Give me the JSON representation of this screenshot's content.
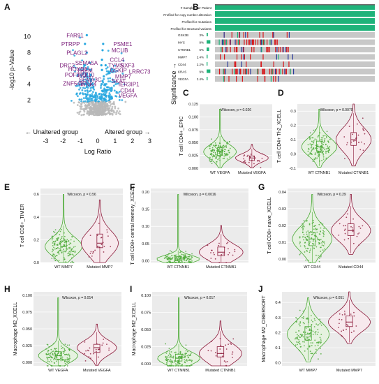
{
  "colors": {
    "gene_label": "#7b1e7a",
    "volcano_cyan": "#29a8e0",
    "volcano_grey": "#b8b8b8",
    "violin_green": "#49a834",
    "violin_maroon": "#8b1a3a",
    "panel_bg": "#ebebeb",
    "oncoprint_green": "#1fb37a",
    "oncoprint_grey": "#c8c8c8",
    "oncoprint_red": "#d7191c",
    "oncoprint_blue": "#2b3a9a"
  },
  "panel_letters": [
    "A",
    "B",
    "C",
    "D",
    "E",
    "F",
    "G",
    "H",
    "I",
    "J"
  ],
  "chart_data": [
    {
      "panel": "A",
      "type": "scatter",
      "xlabel": "Log Ratio",
      "ylabel": "-log10 p-Value",
      "right_label": "Significance →",
      "left_arrow": "← Unaltered group",
      "right_arrow": "Altered group →",
      "xlim": [
        -3.3,
        3.3
      ],
      "ylim": [
        0,
        12
      ],
      "x_ticks": [
        -3,
        -2,
        -1,
        0,
        1,
        2,
        3
      ],
      "y_ticks": [
        2,
        4,
        6,
        8,
        10
      ],
      "genes": [
        {
          "label": "FAR91",
          "x": -1.8,
          "y": 10.2
        },
        {
          "label": "PTRPP",
          "x": -2.1,
          "y": 9.1
        },
        {
          "label": "PLAGL2",
          "x": -1.8,
          "y": 8.0
        },
        {
          "label": "SEMA5A",
          "x": -1.3,
          "y": 6.7
        },
        {
          "label": "DRC2",
          "x": -2.2,
          "y": 6.4
        },
        {
          "label": "HOXD1",
          "x": -1.7,
          "y": 5.9
        },
        {
          "label": "TREM",
          "x": -1.2,
          "y": 5.8
        },
        {
          "label": "POFUT1",
          "x": -1.9,
          "y": 5.2
        },
        {
          "label": "TRX10",
          "x": -1.2,
          "y": 5.2
        },
        {
          "label": "SEMA3C",
          "x": -1.1,
          "y": 4.6
        },
        {
          "label": "ZNF541",
          "x": -2.0,
          "y": 4.1
        },
        {
          "label": "WNK4",
          "x": -1.0,
          "y": 4.0
        },
        {
          "label": "PSME1",
          "x": 0.9,
          "y": 9.1
        },
        {
          "label": "MCUB",
          "x": 0.8,
          "y": 8.3
        },
        {
          "label": "CCL4",
          "x": 0.7,
          "y": 7.1
        },
        {
          "label": "TYMS",
          "x": 0.6,
          "y": 6.4
        },
        {
          "label": "NXF3",
          "x": 1.3,
          "y": 6.4
        },
        {
          "label": "GSKIP",
          "x": 0.7,
          "y": 5.8
        },
        {
          "label": "LRRC73",
          "x": 1.8,
          "y": 5.6
        },
        {
          "label": "MMP7",
          "x": 1.0,
          "y": 5.0
        },
        {
          "label": "SKAT",
          "x": 0.8,
          "y": 4.4
        },
        {
          "label": "IER3IP1",
          "x": 1.2,
          "y": 4.0
        },
        {
          "label": "CD44",
          "x": 1.3,
          "y": 3.2
        },
        {
          "label": "VEGFA",
          "x": 1.2,
          "y": 2.6
        }
      ]
    },
    {
      "panel": "B",
      "type": "heatmap",
      "header_rows": [
        "# Samples per Patient",
        "Profiled for copy number alteration",
        "Profiled for mutations",
        "Profiled for structural variants"
      ],
      "genes": [
        {
          "gene": "GSK3B",
          "pct": "3%"
        },
        {
          "gene": "MYC",
          "pct": "9%"
        },
        {
          "gene": "CTNNB1",
          "pct": "6%"
        },
        {
          "gene": "MMP7",
          "pct": "2.4%"
        },
        {
          "gene": "CD44",
          "pct": "2.2%"
        },
        {
          "gene": "KRAS",
          "pct": "9%"
        },
        {
          "gene": "VEGFA",
          "pct": "2.4%"
        }
      ]
    },
    {
      "panel": "C",
      "type": "violin",
      "annotation": "Wilcoxon, p = 0.026",
      "ylabel": "T cell CD4+_EPIC",
      "ylim": [
        0,
        0.125
      ],
      "y_ticks": [
        0,
        0.025,
        0.05,
        0.075,
        0.1,
        0.125
      ],
      "y_tick_labels": [
        "0.000",
        "0.025",
        "0.050",
        "0.075",
        "0.100",
        "0.125"
      ],
      "groups": [
        "WT VEGFA",
        "Mutated VEGFA"
      ],
      "medians": [
        0.032,
        0.02
      ],
      "q1": [
        0.025,
        0.015
      ],
      "q3": [
        0.04,
        0.024
      ]
    },
    {
      "panel": "D",
      "type": "violin",
      "annotation": "Wilcoxon, p = 0.0079",
      "ylabel": "T cell CD4+ Th2_XCELL",
      "ylim": [
        -0.1,
        0.35
      ],
      "y_ticks": [
        -0.1,
        0,
        0.1,
        0.2,
        0.3
      ],
      "y_tick_labels": [
        "-0.1",
        "0.0",
        "0.1",
        "0.2",
        "0.3"
      ],
      "groups": [
        "WT CTNNB1",
        "Mutated CTNNB1"
      ],
      "medians": [
        0.05,
        0.1
      ],
      "q1": [
        0.02,
        0.06
      ],
      "q3": [
        0.09,
        0.15
      ]
    },
    {
      "panel": "E",
      "type": "violin",
      "annotation": "Wilcoxon, p = 0.56",
      "ylabel": "T cell CD8+_TIMER",
      "ylim": [
        0,
        0.65
      ],
      "y_ticks": [
        0,
        0.2,
        0.4,
        0.6
      ],
      "y_tick_labels": [
        "0.0",
        "0.2",
        "0.4",
        "0.6"
      ],
      "groups": [
        "WT MMP7",
        "Mutated MMP7"
      ],
      "medians": [
        0.14,
        0.17
      ],
      "q1": [
        0.1,
        0.13
      ],
      "q3": [
        0.19,
        0.25
      ]
    },
    {
      "panel": "F",
      "type": "violin",
      "annotation": "Wilcoxon, p = 0.0016",
      "ylabel": "T cell CD8+ central memory_XCELL",
      "ylim": [
        -0.005,
        0.21
      ],
      "y_ticks": [
        0,
        0.05,
        0.1,
        0.15,
        0.2
      ],
      "y_tick_labels": [
        "0.00",
        "0.05",
        "0.10",
        "0.15",
        "0.20"
      ],
      "groups": [
        "WT CTNNB1",
        "Mutated CTNNB1"
      ],
      "medians": [
        0.005,
        0.025
      ],
      "q1": [
        0,
        0.015
      ],
      "q3": [
        0.012,
        0.04
      ]
    },
    {
      "panel": "G",
      "type": "violin",
      "annotation": "Wilcoxon, p = 0.29",
      "ylabel": "T cell CD8+ naive_XCELL",
      "ylim": [
        -0.002,
        0.042
      ],
      "y_ticks": [
        0,
        0.01,
        0.02,
        0.03,
        0.04
      ],
      "y_tick_labels": [
        "0.00",
        "0.01",
        "0.02",
        "0.03",
        "0.04"
      ],
      "groups": [
        "WT CD44",
        "Mutated CD44"
      ],
      "medians": [
        0.012,
        0.017
      ],
      "q1": [
        0.008,
        0.014
      ],
      "q3": [
        0.016,
        0.021
      ]
    },
    {
      "panel": "H",
      "type": "violin",
      "annotation": "Wilcoxon, p = 0.014",
      "ylabel": "Macrophage M2_XCELL",
      "ylim": [
        -0.005,
        0.105
      ],
      "y_ticks": [
        0,
        0.025,
        0.05,
        0.075,
        0.1
      ],
      "y_tick_labels": [
        "0.000",
        "0.025",
        "0.050",
        "0.075",
        "0.100"
      ],
      "groups": [
        "WT VEGFA",
        "Mutated VEGFA"
      ],
      "medians": [
        0.01,
        0.022
      ],
      "q1": [
        0.005,
        0.015
      ],
      "q3": [
        0.016,
        0.027
      ]
    },
    {
      "panel": "I",
      "type": "violin",
      "annotation": "Wilcoxon, p = 0.017",
      "ylabel": "Macrophage M2_XCELL",
      "ylim": [
        -0.003,
        0.105
      ],
      "y_ticks": [
        0,
        0.025,
        0.05,
        0.075,
        0.1
      ],
      "y_tick_labels": [
        "0.000",
        "0.025",
        "0.050",
        "0.075",
        "0.100"
      ],
      "groups": [
        "WT CTNNB1",
        "Mutated CTNNB1"
      ],
      "medians": [
        0.008,
        0.015
      ],
      "q1": [
        0.004,
        0.01
      ],
      "q3": [
        0.014,
        0.025
      ]
    },
    {
      "panel": "J",
      "type": "violin",
      "annotation": "Wilcoxon, p = 0.051",
      "ylabel": "Macrophage M2_CIBERSORT",
      "ylim": [
        -0.02,
        0.47
      ],
      "y_ticks": [
        0,
        0.1,
        0.2,
        0.3,
        0.4
      ],
      "y_tick_labels": [
        "0.0",
        "0.1",
        "0.2",
        "0.3",
        "0.4"
      ],
      "groups": [
        "WT MMP7",
        "Mutated MMP7"
      ],
      "medians": [
        0.19,
        0.27
      ],
      "q1": [
        0.15,
        0.24
      ],
      "q3": [
        0.24,
        0.31
      ]
    }
  ]
}
